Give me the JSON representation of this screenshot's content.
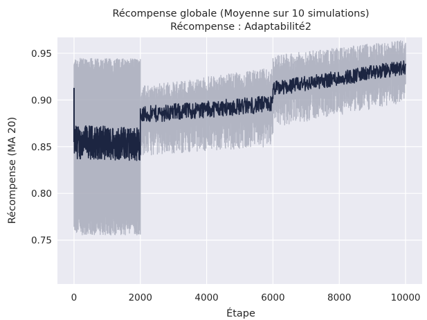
{
  "chart_data": {
    "type": "line",
    "title": "Récompense globale (Moyenne sur 10 simulations)",
    "subtitle": "Récompense : Adaptabilité2",
    "xlabel": "Étape",
    "ylabel": "Récompense (MA 20)",
    "xlim": [
      -500,
      10500
    ],
    "ylim": [
      0.703,
      0.967
    ],
    "xticks": [
      0,
      2000,
      4000,
      6000,
      8000,
      10000
    ],
    "xtick_labels": [
      "0",
      "2000",
      "4000",
      "6000",
      "8000",
      "10000"
    ],
    "yticks": [
      0.75,
      0.8,
      0.85,
      0.9,
      0.95
    ],
    "ytick_labels": [
      "0.75",
      "0.80",
      "0.85",
      "0.90",
      "0.95"
    ],
    "grid": true,
    "background": "#eaeaf2",
    "series": [
      {
        "line_color": "#1c2541",
        "band_color": "#a8abbb",
        "segments": [
          {
            "x_start": 0,
            "x_end": 2000,
            "mean_start": 0.855,
            "mean_end": 0.853,
            "noise": 0.018,
            "band_lower": 0.77,
            "band_upper": 0.935
          },
          {
            "x_start": 2000,
            "x_end": 6000,
            "mean_start": 0.884,
            "mean_end": 0.896,
            "noise": 0.009,
            "band_lower_start": 0.855,
            "band_lower_end": 0.865,
            "band_upper_start": 0.905,
            "band_upper_end": 0.925
          },
          {
            "x_start": 6000,
            "x_end": 10000,
            "mean_start": 0.912,
            "mean_end": 0.935,
            "noise": 0.008,
            "band_lower_start": 0.885,
            "band_lower_end": 0.912,
            "band_upper_start": 0.938,
            "band_upper_end": 0.955
          }
        ],
        "initial_spike": {
          "x": 0,
          "value": 0.913
        }
      }
    ]
  }
}
